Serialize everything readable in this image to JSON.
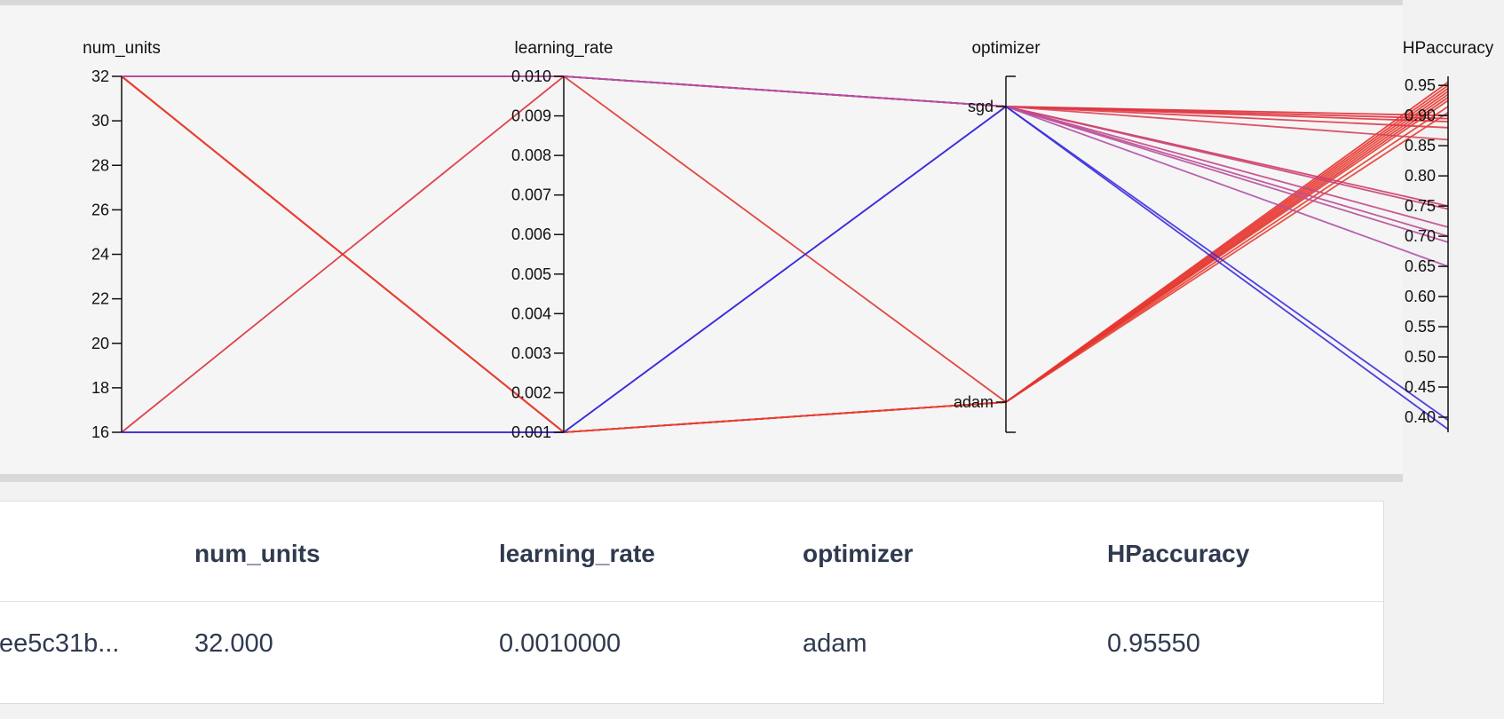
{
  "chart_data": {
    "type": "parallel-coordinates",
    "axes": [
      {
        "name": "num_units",
        "ticks": [
          "16",
          "18",
          "20",
          "22",
          "24",
          "26",
          "28",
          "30",
          "32"
        ],
        "range": [
          16,
          32
        ]
      },
      {
        "name": "learning_rate",
        "ticks": [
          "0.001",
          "0.002",
          "0.003",
          "0.004",
          "0.005",
          "0.006",
          "0.007",
          "0.008",
          "0.009",
          "0.010"
        ],
        "range": [
          0.001,
          0.01
        ]
      },
      {
        "name": "optimizer",
        "ticks": [
          "adam",
          "sgd"
        ],
        "categories": [
          "adam",
          "sgd"
        ]
      },
      {
        "name": "HPaccuracy",
        "ticks": [
          "0.40",
          "0.45",
          "0.50",
          "0.55",
          "0.60",
          "0.65",
          "0.70",
          "0.75",
          "0.80",
          "0.85",
          "0.90",
          "0.95"
        ],
        "range": [
          0.375,
          0.965
        ]
      }
    ],
    "runs": [
      {
        "num_units": 32,
        "learning_rate": 0.001,
        "optimizer": "adam",
        "HPaccuracy": 0.9555,
        "color": "#e8322f"
      },
      {
        "num_units": 32,
        "learning_rate": 0.001,
        "optimizer": "adam",
        "HPaccuracy": 0.95,
        "color": "#e8342f"
      },
      {
        "num_units": 32,
        "learning_rate": 0.001,
        "optimizer": "adam",
        "HPaccuracy": 0.945,
        "color": "#e8362f"
      },
      {
        "num_units": 32,
        "learning_rate": 0.001,
        "optimizer": "adam",
        "HPaccuracy": 0.94,
        "color": "#e83830"
      },
      {
        "num_units": 32,
        "learning_rate": 0.001,
        "optimizer": "adam",
        "HPaccuracy": 0.935,
        "color": "#e83a30"
      },
      {
        "num_units": 32,
        "learning_rate": 0.001,
        "optimizer": "adam",
        "HPaccuracy": 0.925,
        "color": "#e83c31"
      },
      {
        "num_units": 32,
        "learning_rate": 0.001,
        "optimizer": "adam",
        "HPaccuracy": 0.915,
        "color": "#e83e32"
      },
      {
        "num_units": 32,
        "learning_rate": 0.001,
        "optimizer": "adam",
        "HPaccuracy": 0.905,
        "color": "#e84033"
      },
      {
        "num_units": 32,
        "learning_rate": 0.01,
        "optimizer": "adam",
        "HPaccuracy": 0.93,
        "color": "#e0342e"
      },
      {
        "num_units": 16,
        "learning_rate": 0.01,
        "optimizer": "sgd",
        "HPaccuracy": 0.9,
        "color": "#dd2f3a"
      },
      {
        "num_units": 32,
        "learning_rate": 0.01,
        "optimizer": "sgd",
        "HPaccuracy": 0.895,
        "color": "#e0303a"
      },
      {
        "num_units": 32,
        "learning_rate": 0.01,
        "optimizer": "sgd",
        "HPaccuracy": 0.89,
        "color": "#e1333c"
      },
      {
        "num_units": 32,
        "learning_rate": 0.01,
        "optimizer": "sgd",
        "HPaccuracy": 0.88,
        "color": "#de3a48"
      },
      {
        "num_units": 32,
        "learning_rate": 0.01,
        "optimizer": "sgd",
        "HPaccuracy": 0.86,
        "color": "#d9445a"
      },
      {
        "num_units": 32,
        "learning_rate": 0.01,
        "optimizer": "sgd",
        "HPaccuracy": 0.75,
        "color": "#d23a60"
      },
      {
        "num_units": 32,
        "learning_rate": 0.01,
        "optimizer": "sgd",
        "HPaccuracy": 0.745,
        "color": "#c9437a"
      },
      {
        "num_units": 32,
        "learning_rate": 0.01,
        "optimizer": "sgd",
        "HPaccuracy": 0.715,
        "color": "#c4488a"
      },
      {
        "num_units": 32,
        "learning_rate": 0.01,
        "optimizer": "sgd",
        "HPaccuracy": 0.7,
        "color": "#bd4c96"
      },
      {
        "num_units": 32,
        "learning_rate": 0.01,
        "optimizer": "sgd",
        "HPaccuracy": 0.69,
        "color": "#b8509d"
      },
      {
        "num_units": 32,
        "learning_rate": 0.01,
        "optimizer": "sgd",
        "HPaccuracy": 0.65,
        "color": "#b44fa8"
      },
      {
        "num_units": 16,
        "learning_rate": 0.001,
        "optimizer": "sgd",
        "HPaccuracy": 0.395,
        "color": "#3c2de0"
      },
      {
        "num_units": 16,
        "learning_rate": 0.001,
        "optimizer": "sgd",
        "HPaccuracy": 0.38,
        "color": "#3a2bdc"
      }
    ]
  },
  "table": {
    "headers": [
      "num_units",
      "learning_rate",
      "optimizer",
      "HPaccuracy"
    ],
    "row": {
      "id": "ee5c31b...",
      "num_units": "32.000",
      "learning_rate": "0.0010000",
      "optimizer": "adam",
      "HPaccuracy": "0.95550"
    }
  }
}
